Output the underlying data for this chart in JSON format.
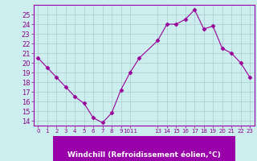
{
  "x": [
    0,
    1,
    2,
    3,
    4,
    5,
    6,
    7,
    8,
    9,
    10,
    11,
    13,
    14,
    15,
    16,
    17,
    18,
    19,
    20,
    21,
    22,
    23
  ],
  "y": [
    20.5,
    19.5,
    18.5,
    17.5,
    16.5,
    15.8,
    14.3,
    13.8,
    14.8,
    17.2,
    19.0,
    20.5,
    22.3,
    24.0,
    24.0,
    24.5,
    25.5,
    23.5,
    23.8,
    21.5,
    21.0,
    20.0,
    18.5
  ],
  "line_color": "#990099",
  "marker": "D",
  "marker_size": 2.5,
  "bg_color": "#cceeee",
  "grid_color": "#aacccc",
  "xlabel": "Windchill (Refroidissement éolien,°C)",
  "xlabel_bg": "#9900aa",
  "xlabel_color": "#ffffff",
  "ylim": [
    13.5,
    26.0
  ],
  "yticks": [
    14,
    15,
    16,
    17,
    18,
    19,
    20,
    21,
    22,
    23,
    24,
    25
  ],
  "xlim": [
    -0.5,
    23.5
  ]
}
